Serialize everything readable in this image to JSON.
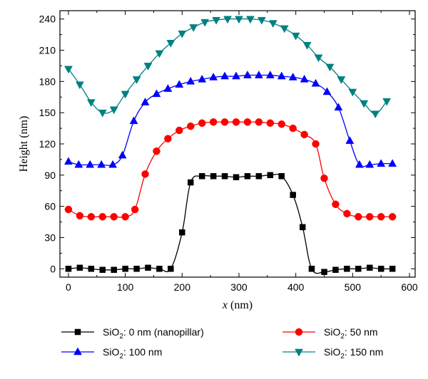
{
  "chart_data": {
    "type": "line",
    "xlabel_var": "x",
    "xlabel_unit": " (nm)",
    "ylabel": "Height (nm)",
    "xlim": [
      -15,
      610
    ],
    "ylim": [
      -8,
      248
    ],
    "xticks": [
      0,
      100,
      200,
      300,
      400,
      500,
      600
    ],
    "yticks": [
      0,
      30,
      60,
      90,
      120,
      150,
      180,
      210,
      240
    ],
    "legend_position": "bottom",
    "series": [
      {
        "name_prefix": "SiO",
        "name_sub": "2",
        "name_suffix": ": 0 nm (nanopillar)",
        "color": "#000000",
        "marker": "square",
        "x": [
          0,
          20,
          40,
          60,
          80,
          100,
          120,
          140,
          160,
          180,
          200,
          215,
          235,
          255,
          275,
          295,
          315,
          335,
          355,
          375,
          395,
          412,
          428,
          450,
          470,
          490,
          510,
          530,
          550,
          570
        ],
        "y": [
          0,
          1,
          0,
          -1,
          -1,
          0,
          0,
          1,
          0,
          0,
          35,
          83,
          89,
          89,
          89,
          88,
          89,
          89,
          90,
          89,
          71,
          40,
          0,
          -3,
          -1,
          0,
          0,
          1,
          0,
          0
        ]
      },
      {
        "name_prefix": "SiO",
        "name_sub": "2",
        "name_suffix": ": 50 nm",
        "color": "#ff0000",
        "marker": "circle",
        "x": [
          0,
          20,
          40,
          60,
          80,
          100,
          117,
          135,
          155,
          175,
          195,
          215,
          235,
          255,
          275,
          295,
          315,
          335,
          355,
          375,
          395,
          415,
          435,
          450,
          470,
          490,
          510,
          530,
          550,
          570
        ],
        "y": [
          57,
          51,
          50,
          50,
          50,
          50,
          57,
          91,
          113,
          125,
          133,
          137,
          140,
          141,
          141,
          141,
          141,
          141,
          140,
          139,
          135,
          129,
          120,
          87,
          62,
          53,
          50,
          50,
          50,
          50
        ],
        "legend_column": 2
      },
      {
        "name_prefix": "SiO",
        "name_sub": "2",
        "name_suffix": ": 100 nm",
        "color": "#0000ff",
        "marker": "triangle-up",
        "x": [
          0,
          18,
          38,
          58,
          78,
          95,
          115,
          135,
          155,
          175,
          195,
          215,
          235,
          255,
          275,
          295,
          315,
          335,
          355,
          375,
          395,
          415,
          435,
          455,
          475,
          495,
          512,
          530,
          550,
          570
        ],
        "y": [
          103,
          100,
          100,
          100,
          100,
          109,
          142,
          160,
          168,
          173,
          177,
          180,
          182,
          184,
          185,
          185,
          186,
          186,
          186,
          185,
          184,
          182,
          178,
          170,
          155,
          123,
          100,
          100,
          101,
          101
        ]
      },
      {
        "name_prefix": "SiO",
        "name_sub": "2",
        "name_suffix": ": 150 nm",
        "color": "#008080",
        "marker": "triangle-down",
        "x": [
          0,
          20,
          40,
          60,
          80,
          100,
          120,
          140,
          160,
          180,
          200,
          220,
          240,
          260,
          280,
          300,
          320,
          340,
          360,
          380,
          400,
          420,
          440,
          460,
          480,
          500,
          520,
          540,
          560
        ],
        "y": [
          192,
          177,
          160,
          150,
          153,
          168,
          182,
          195,
          207,
          217,
          226,
          232,
          237,
          239,
          240,
          240,
          240,
          239,
          236,
          231,
          224,
          215,
          203,
          194,
          182,
          170,
          159,
          149,
          161
        ]
      }
    ]
  }
}
